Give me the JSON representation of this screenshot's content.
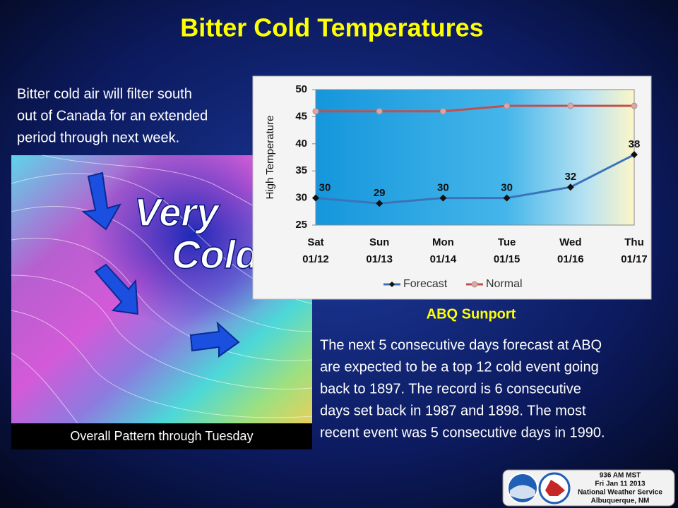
{
  "title": "Bitter Cold Temperatures",
  "intro_lines": [
    "Bitter cold air will filter south",
    "out of Canada for an extended",
    "period through next week."
  ],
  "map_label_lines": [
    "Very",
    "Cold"
  ],
  "map_caption": "Overall Pattern through Tuesday",
  "chart_data": {
    "type": "line",
    "categories": [
      "Sat 01/12",
      "Sun 01/13",
      "Mon 01/14",
      "Tue 01/15",
      "Wed 01/16",
      "Thu 01/17"
    ],
    "y_label": "High Temperature",
    "series": [
      {
        "name": "Forecast",
        "color": "#3b73b9",
        "values": [
          30,
          29,
          30,
          30,
          32,
          38
        ]
      },
      {
        "name": "Normal",
        "color": "#c0504d",
        "values": [
          46,
          46,
          46,
          47,
          47,
          47
        ]
      }
    ],
    "ylim": [
      25,
      50
    ],
    "yticks": [
      25,
      30,
      35,
      40,
      45,
      50
    ],
    "grid": false,
    "legend": "bottom"
  },
  "chart_caption": "ABQ Sunport",
  "body_lines": [
    "The next 5 consecutive days forecast at ABQ",
    "are expected to be a top 12 cold event going",
    "back to 1897.  The record is 6 consecutive",
    "days set back in 1987 and 1898.  The most",
    "recent event was 5 consecutive days in 1990."
  ],
  "stamp_lines": [
    "936 AM MST",
    "Fri Jan 11 2013",
    "National Weather Service",
    "Albuquerque, NM"
  ]
}
